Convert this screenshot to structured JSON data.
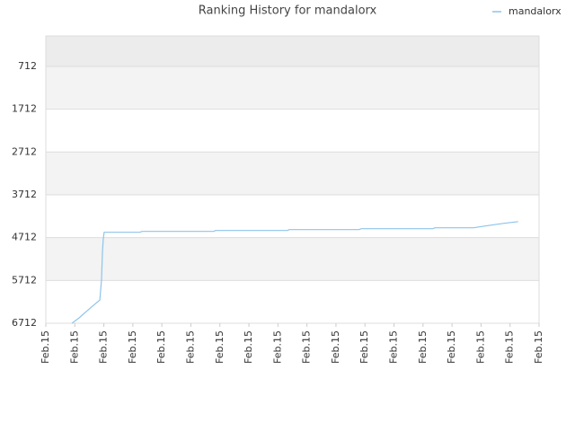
{
  "chart_data": {
    "type": "line",
    "title": "Ranking History for mandalorx",
    "series": [
      {
        "name": "mandalorx",
        "color": "#8ec4ea",
        "x": [
          0.9,
          1.15,
          1.39,
          1.64,
          1.86,
          1.92,
          1.95,
          1.98,
          2.01,
          3.25,
          3.31,
          5.79,
          5.85,
          8.33,
          8.39,
          10.8,
          10.87,
          13.34,
          13.41,
          14.74,
          15.14,
          15.76,
          16.28
        ],
        "values": [
          6712,
          6587,
          6441,
          6295,
          6170,
          5691,
          5066,
          4754,
          4587,
          4587,
          4566,
          4566,
          4545,
          4545,
          4525,
          4525,
          4504,
          4504,
          4483,
          4483,
          4441,
          4379,
          4337
        ]
      }
    ],
    "ylim": [
      6712,
      0
    ],
    "yticks": [
      712,
      1712,
      2712,
      3712,
      4712,
      5712,
      6712
    ],
    "xlim": [
      0,
      17
    ],
    "xticks": [
      {
        "value": 0,
        "label": "Feb.15"
      },
      {
        "value": 1,
        "label": "Feb.15"
      },
      {
        "value": 2,
        "label": "Feb.15"
      },
      {
        "value": 3,
        "label": "Feb.15"
      },
      {
        "value": 4,
        "label": "Feb.15"
      },
      {
        "value": 5,
        "label": "Feb.15"
      },
      {
        "value": 6,
        "label": "Feb.15"
      },
      {
        "value": 7,
        "label": "Feb.15"
      },
      {
        "value": 8,
        "label": "Feb.15"
      },
      {
        "value": 9,
        "label": "Feb.15"
      },
      {
        "value": 10,
        "label": "Feb.15"
      },
      {
        "value": 11,
        "label": "Feb.15"
      },
      {
        "value": 12,
        "label": "Feb.15"
      },
      {
        "value": 13,
        "label": "Feb.15"
      },
      {
        "value": 14,
        "label": "Feb.15"
      },
      {
        "value": 15,
        "label": "Feb.15"
      },
      {
        "value": 16,
        "label": "Feb.15"
      },
      {
        "value": 17,
        "label": "Feb.15"
      }
    ],
    "grid": true,
    "legend": "upper right"
  }
}
